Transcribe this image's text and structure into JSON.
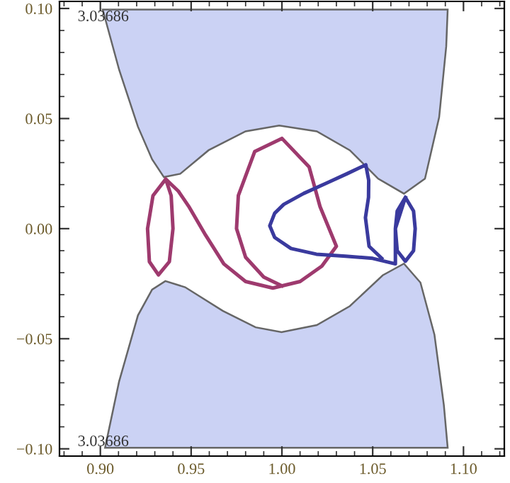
{
  "chart_data": {
    "type": "line",
    "xlim": [
      0.8775,
      1.1225
    ],
    "ylim": [
      -0.1033,
      0.1032
    ],
    "xticks": [
      {
        "value": 0.9,
        "label": "0.90"
      },
      {
        "value": 0.91,
        "label": null
      },
      {
        "value": 0.92,
        "label": null
      },
      {
        "value": 0.93,
        "label": null
      },
      {
        "value": 0.94,
        "label": null
      },
      {
        "value": 0.95,
        "label": "0.95"
      },
      {
        "value": 0.96,
        "label": null
      },
      {
        "value": 0.97,
        "label": null
      },
      {
        "value": 0.98,
        "label": null
      },
      {
        "value": 0.99,
        "label": null
      },
      {
        "value": 1.0,
        "label": "1.00"
      },
      {
        "value": 1.01,
        "label": null
      },
      {
        "value": 1.02,
        "label": null
      },
      {
        "value": 1.03,
        "label": null
      },
      {
        "value": 1.04,
        "label": null
      },
      {
        "value": 1.05,
        "label": "1.05"
      },
      {
        "value": 1.06,
        "label": null
      },
      {
        "value": 1.07,
        "label": null
      },
      {
        "value": 1.08,
        "label": null
      },
      {
        "value": 1.09,
        "label": null
      },
      {
        "value": 1.1,
        "label": "1.10"
      },
      {
        "value": 0.88,
        "label": null
      },
      {
        "value": 0.89,
        "label": null
      },
      {
        "value": 1.11,
        "label": null
      },
      {
        "value": 1.12,
        "label": null
      }
    ],
    "yticks": [
      {
        "value": -0.1,
        "label": "−0.10"
      },
      {
        "value": -0.09,
        "label": null
      },
      {
        "value": -0.08,
        "label": null
      },
      {
        "value": -0.07,
        "label": null
      },
      {
        "value": -0.06,
        "label": null
      },
      {
        "value": -0.05,
        "label": "−0.05"
      },
      {
        "value": -0.04,
        "label": null
      },
      {
        "value": -0.03,
        "label": null
      },
      {
        "value": -0.02,
        "label": null
      },
      {
        "value": -0.01,
        "label": null
      },
      {
        "value": 0.0,
        "label": "0.00"
      },
      {
        "value": 0.01,
        "label": null
      },
      {
        "value": 0.02,
        "label": null
      },
      {
        "value": 0.03,
        "label": null
      },
      {
        "value": 0.04,
        "label": null
      },
      {
        "value": 0.05,
        "label": "0.05"
      },
      {
        "value": 0.06,
        "label": null
      },
      {
        "value": 0.07,
        "label": null
      },
      {
        "value": 0.08,
        "label": null
      },
      {
        "value": 0.09,
        "label": null
      },
      {
        "value": 0.1,
        "label": "0.10"
      }
    ],
    "series": [
      {
        "type": "area",
        "color": "#cbd2f4",
        "x": [
          0.9013,
          0.9104,
          0.9207,
          0.9285,
          0.935,
          0.944,
          0.9596,
          0.98,
          0.9985,
          1.0192,
          1.0374,
          1.053,
          1.0672,
          1.0788,
          1.0866,
          1.0905,
          1.0913
        ],
        "values": [
          0.0995,
          0.072,
          0.0463,
          0.0315,
          0.0234,
          0.0249,
          0.0356,
          0.0442,
          0.0468,
          0.0442,
          0.0356,
          0.0227,
          0.0159,
          0.0227,
          0.0506,
          0.0828,
          0.0995
        ]
      },
      {
        "type": "area",
        "color": "#cbd2f4",
        "x": [
          0.9026,
          0.9103,
          0.9207,
          0.9285,
          0.9358,
          0.9467,
          0.9674,
          0.9855,
          0.9998,
          1.0192,
          1.0374,
          1.0555,
          1.0672,
          1.0763,
          1.084,
          1.0892,
          1.0913
        ],
        "values": [
          -0.0995,
          -0.0695,
          -0.0394,
          -0.0277,
          -0.0238,
          -0.0266,
          -0.0373,
          -0.0448,
          -0.047,
          -0.0438,
          -0.0352,
          -0.0212,
          -0.0159,
          -0.0245,
          -0.0481,
          -0.0802,
          -0.0995
        ]
      },
      {
        "type": "line",
        "color": "#9e3a6e",
        "x": [
          0.936,
          0.929,
          0.926,
          0.927,
          0.932,
          0.938,
          0.94,
          0.939,
          0.936,
          0.943,
          0.949,
          0.958,
          0.968,
          0.98,
          0.995,
          1.01,
          1.022,
          1.03,
          1.021,
          1.015,
          1.0,
          0.985,
          0.976,
          0.975,
          0.98,
          0.99,
          1.0
        ],
        "values": [
          0.0225,
          0.015,
          0.0,
          -0.015,
          -0.021,
          -0.015,
          0.0,
          0.015,
          0.0225,
          0.017,
          0.0097,
          -0.003,
          -0.016,
          -0.024,
          -0.027,
          -0.024,
          -0.017,
          -0.008,
          0.01,
          0.028,
          0.041,
          0.035,
          0.015,
          0.0,
          -0.013,
          -0.022,
          -0.026
        ]
      },
      {
        "type": "line",
        "color": "#3a3a9e",
        "x": [
          1.068,
          1.0635,
          1.0625,
          1.0635,
          1.068,
          1.0725,
          1.0734,
          1.0725,
          1.068,
          1.0625,
          1.0625,
          1.05,
          1.035,
          1.019,
          1.005,
          0.996,
          0.9933,
          0.996,
          1.001,
          1.012,
          1.0244,
          1.036,
          1.0462,
          1.0478,
          1.0477,
          1.046,
          1.048,
          1.055
        ],
        "values": [
          0.0142,
          0.008,
          0.0,
          -0.01,
          -0.0148,
          -0.01,
          0.0,
          0.008,
          0.0142,
          0.0,
          -0.016,
          -0.0135,
          -0.0125,
          -0.0116,
          -0.009,
          -0.004,
          0.0013,
          0.007,
          0.011,
          0.016,
          0.0206,
          0.025,
          0.029,
          0.022,
          0.0142,
          0.005,
          -0.008,
          -0.0135
        ]
      }
    ],
    "annotations": [
      {
        "text": "3.03686",
        "x": 0.9016,
        "y": 0.096
      },
      {
        "text": "3.03686",
        "x": 0.9016,
        "y": -0.097
      }
    ]
  }
}
